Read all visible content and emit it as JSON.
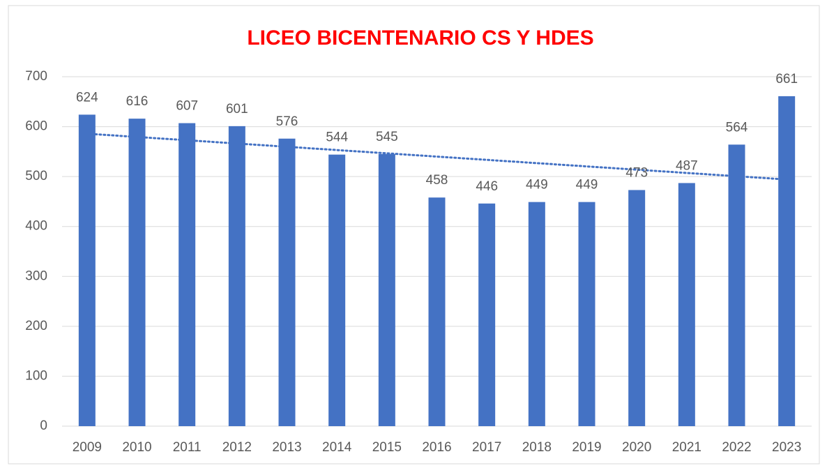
{
  "chart_data": {
    "type": "bar",
    "title": "LICEO BICENTENARIO CS Y HDES",
    "categories": [
      "2009",
      "2010",
      "2011",
      "2012",
      "2013",
      "2014",
      "2015",
      "2016",
      "2017",
      "2018",
      "2019",
      "2020",
      "2021",
      "2022",
      "2023"
    ],
    "values": [
      624,
      616,
      607,
      601,
      576,
      544,
      545,
      458,
      446,
      449,
      449,
      473,
      487,
      564,
      661
    ],
    "color": "#4472c4",
    "ylim": [
      0,
      700
    ],
    "yticks": [
      0,
      100,
      200,
      300,
      400,
      500,
      600,
      700
    ],
    "grid": true,
    "data_labels": true,
    "trendline": "linear"
  }
}
